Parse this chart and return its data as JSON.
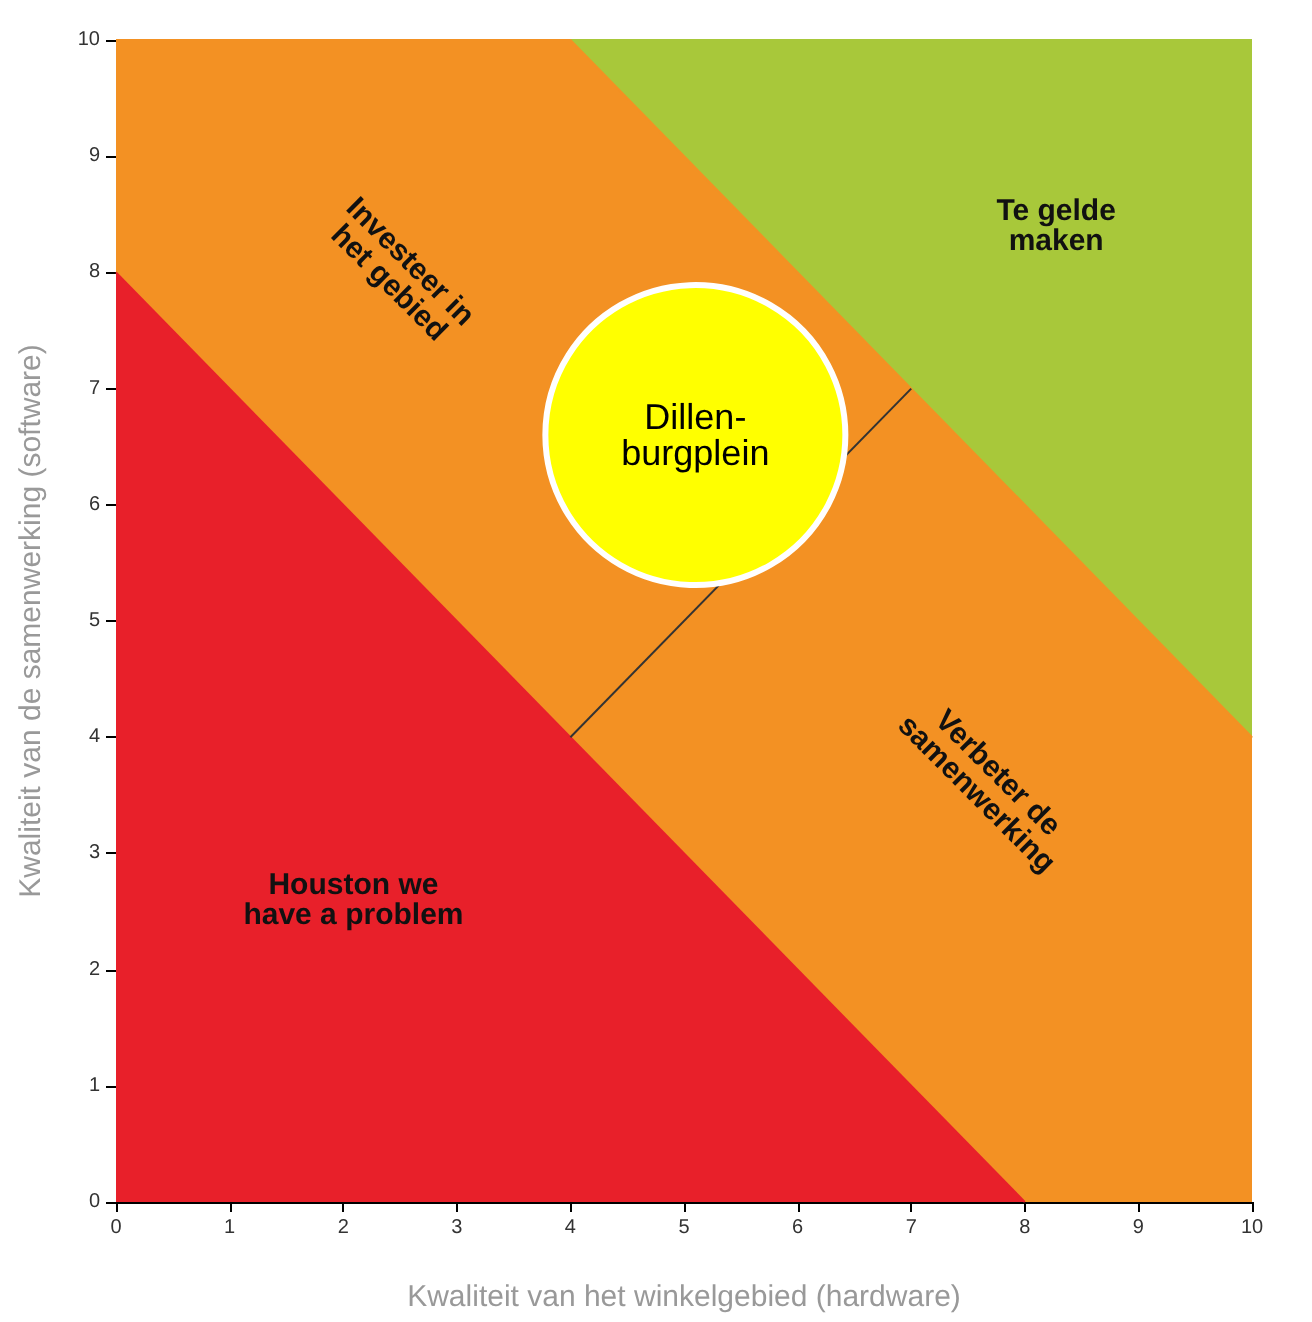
{
  "chart_data": {
    "type": "area",
    "x": [
      0,
      4,
      8,
      10
    ],
    "series": [
      {
        "color": "#e8202a",
        "x": [
          0,
          8
        ],
        "values": [
          8,
          0
        ]
      },
      {
        "color": "#f39123",
        "values": [
          10,
          10,
          6,
          4
        ]
      },
      {
        "color": "#a8c83a",
        "x": [
          4,
          10
        ],
        "values": [
          10,
          10
        ]
      },
      {
        "type": "line",
        "color": "#333333",
        "x": [
          4,
          7
        ],
        "values": [
          4,
          7
        ]
      },
      {
        "type": "bubble",
        "name": "Dillen-burgplein",
        "color": "#ffff00",
        "x": [
          5.1
        ],
        "values": [
          6.6
        ],
        "sizes": [
          1
        ]
      }
    ],
    "xlabel": "Kwaliteit van het winkelgebied (hardware)",
    "ylabel": "Kwaliteit van de samenwerking (software)",
    "xlim": [
      0,
      10
    ],
    "ylim": [
      0,
      10
    ],
    "xticks": [
      0,
      1,
      2,
      3,
      4,
      5,
      6,
      7,
      8,
      9,
      10
    ],
    "yticks": [
      0,
      1,
      2,
      3,
      4,
      5,
      6,
      7,
      8,
      9,
      10
    ],
    "annotations": [
      "Te gelde\nmaken",
      "Investeer in\nhet gebied",
      "Verbeter de\nsamenwerking",
      "Houston we\nhave a problem"
    ],
    "grid": false,
    "legend": false
  }
}
